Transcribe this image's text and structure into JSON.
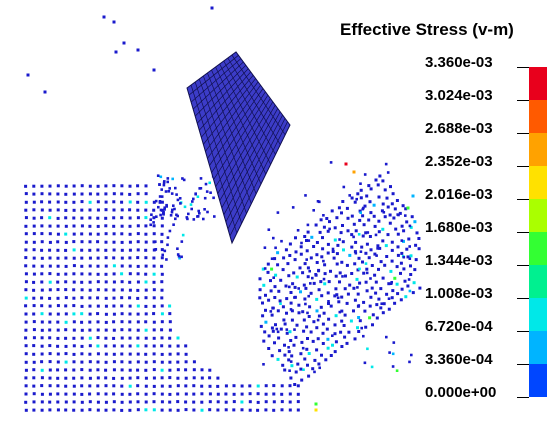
{
  "legend": {
    "title": "Effective Stress (v-m)",
    "labels": [
      "3.360e-03",
      "3.024e-03",
      "2.688e-03",
      "2.352e-03",
      "2.016e-03",
      "1.680e-03",
      "1.344e-03",
      "1.008e-03",
      "6.720e-04",
      "3.360e-04",
      "0.000e+00"
    ],
    "colors": [
      "#e8001c",
      "#ff5a00",
      "#ffa200",
      "#ffe100",
      "#aaff00",
      "#33ff33",
      "#00f090",
      "#00e8e8",
      "#00b4ff",
      "#0046ff",
      "#0000e0"
    ]
  },
  "colors": {
    "particle": "#1a1acc",
    "plate": "#3c3cc8",
    "plate_grid": "#101050",
    "background": "#ffffff"
  }
}
